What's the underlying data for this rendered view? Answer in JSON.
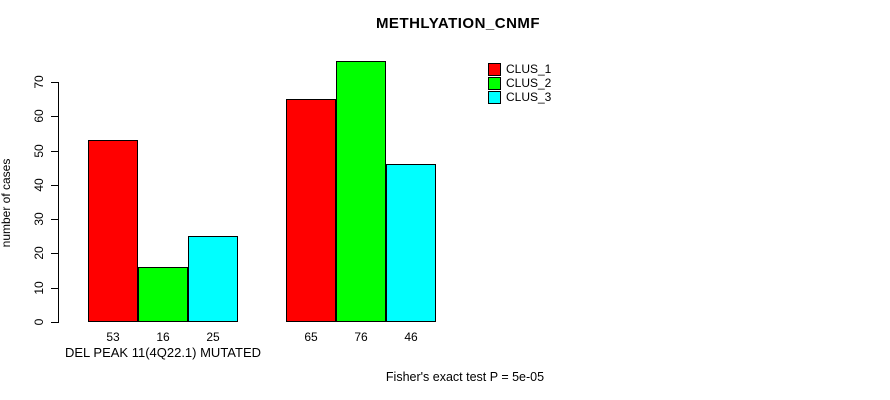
{
  "chart_data": {
    "type": "bar",
    "title": "METHLYATION_CNMF",
    "ylabel": "number of cases",
    "xlabel": "",
    "categories": [
      "DEL PEAK 11(4Q22.1) MUTATED",
      ""
    ],
    "series": [
      {
        "name": "CLUS_1",
        "color": "#FF0000",
        "values": [
          53,
          65
        ]
      },
      {
        "name": "CLUS_2",
        "color": "#00FF00",
        "values": [
          16,
          76
        ]
      },
      {
        "name": "CLUS_3",
        "color": "#00FFFF",
        "values": [
          25,
          46
        ]
      }
    ],
    "yticks": [
      0,
      10,
      20,
      30,
      40,
      50,
      60,
      70
    ],
    "ylim": [
      0,
      76
    ],
    "grid": false,
    "legend_position": "top-right",
    "bar_outline_color": "#000000",
    "background_color": "#FFFFFF",
    "show_value_labels": true,
    "annotations": [
      "Fisher's exact test P = 5e-05"
    ]
  }
}
